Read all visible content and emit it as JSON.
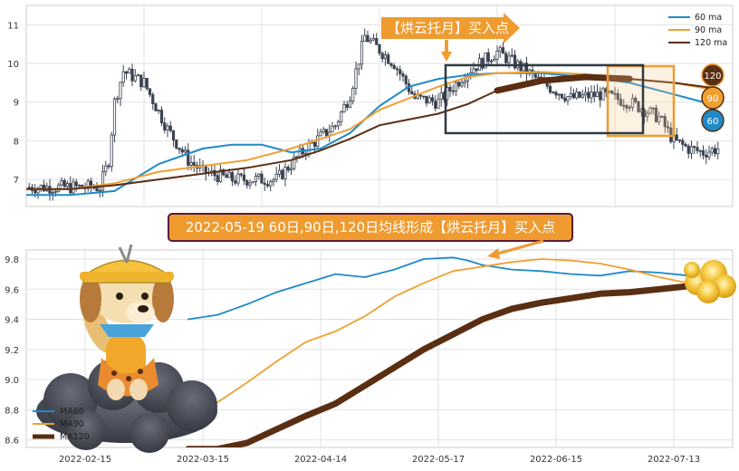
{
  "chart_data": [
    {
      "type": "candlestick",
      "panel": "top",
      "ylim": [
        6.3,
        11.5
      ],
      "yticks": [
        "7",
        "8",
        "9",
        "10",
        "11"
      ],
      "legend": {
        "position": "top-right",
        "entries": [
          "60 ma",
          "90 ma",
          "120 ma"
        ]
      },
      "series": [
        {
          "name": "60 ma",
          "color": "#1f8ac8",
          "x": [
            0,
            15,
            30,
            45,
            60,
            70,
            80,
            90,
            100,
            110,
            120,
            130,
            140,
            150,
            160,
            175,
            190,
            205,
            220,
            235
          ],
          "y": [
            6.6,
            6.6,
            6.7,
            7.4,
            7.8,
            7.9,
            7.9,
            7.7,
            7.8,
            8.2,
            8.9,
            9.4,
            9.6,
            9.7,
            9.75,
            9.75,
            9.65,
            9.5,
            9.2,
            8.9
          ]
        },
        {
          "name": "90 ma",
          "color": "#f0a030",
          "x": [
            0,
            15,
            30,
            45,
            60,
            75,
            90,
            100,
            110,
            120,
            130,
            140,
            150,
            160,
            175,
            190,
            205,
            220,
            235
          ],
          "y": [
            6.75,
            6.75,
            6.9,
            7.2,
            7.35,
            7.5,
            7.8,
            8.05,
            8.3,
            8.8,
            9.1,
            9.4,
            9.65,
            9.75,
            9.78,
            9.72,
            9.6,
            9.5,
            9.3
          ]
        },
        {
          "name": "120 ma",
          "color": "#5a2e12",
          "x": [
            0,
            15,
            30,
            45,
            60,
            75,
            90,
            100,
            110,
            120,
            130,
            140,
            150,
            160,
            175,
            190,
            205,
            220,
            235
          ],
          "y": [
            6.75,
            6.75,
            6.85,
            7.0,
            7.15,
            7.3,
            7.5,
            7.75,
            8.05,
            8.4,
            8.55,
            8.7,
            8.95,
            9.3,
            9.55,
            9.65,
            9.6,
            9.5,
            9.35
          ]
        }
      ],
      "annotations": [
        {
          "type": "banner",
          "text": "【烘云托月】买入点"
        },
        {
          "type": "box",
          "label": "60/90/120 MA box"
        },
        {
          "type": "box",
          "label": "orange box"
        }
      ],
      "badges": [
        "120",
        "90",
        "60"
      ]
    },
    {
      "type": "line",
      "panel": "bottom",
      "ylim": [
        8.55,
        9.86
      ],
      "yticks": [
        "8.6",
        "8.8",
        "9.0",
        "9.2",
        "9.4",
        "9.6",
        "9.8"
      ],
      "xticks": [
        "2022-02-15",
        "2022-03-15",
        "2022-04-14",
        "2022-05-17",
        "2022-06-15",
        "2022-07-13"
      ],
      "legend": {
        "position": "bottom-left",
        "entries": [
          "MA60",
          "MA90",
          "MA120"
        ]
      },
      "series": [
        {
          "name": "MA60",
          "color": "#1f8ac8",
          "x": [
            55,
            65,
            75,
            85,
            95,
            105,
            115,
            125,
            135,
            145,
            150,
            155,
            165,
            175,
            185,
            195,
            205,
            215,
            225,
            230
          ],
          "y": [
            9.4,
            9.43,
            9.5,
            9.58,
            9.64,
            9.7,
            9.68,
            9.73,
            9.8,
            9.81,
            9.79,
            9.76,
            9.73,
            9.72,
            9.7,
            9.69,
            9.72,
            9.71,
            9.69,
            9.65
          ]
        },
        {
          "name": "MA90",
          "color": "#f0a030",
          "x": [
            55,
            65,
            75,
            85,
            95,
            105,
            115,
            125,
            135,
            145,
            155,
            165,
            175,
            185,
            195,
            205,
            215,
            225,
            232
          ],
          "y": [
            8.75,
            8.85,
            8.98,
            9.12,
            9.25,
            9.32,
            9.42,
            9.55,
            9.64,
            9.72,
            9.75,
            9.78,
            9.8,
            9.79,
            9.77,
            9.73,
            9.68,
            9.64,
            9.62
          ]
        },
        {
          "name": "MA120",
          "color": "#5a2e12",
          "x": [
            55,
            60,
            65,
            75,
            85,
            95,
            105,
            115,
            125,
            135,
            145,
            155,
            165,
            175,
            185,
            195,
            205,
            215,
            225,
            235
          ],
          "y": [
            8.54,
            8.54,
            8.54,
            8.58,
            8.67,
            8.76,
            8.84,
            8.96,
            9.08,
            9.2,
            9.3,
            9.4,
            9.47,
            9.51,
            9.54,
            9.57,
            9.58,
            9.6,
            9.62,
            9.62
          ]
        }
      ],
      "annotations": [
        {
          "type": "banner",
          "text": "2022-05-19 60日,90日,120日均线形成【烘云托月】买入点"
        }
      ]
    }
  ],
  "colors": {
    "ma60": "#1f8ac8",
    "ma90": "#f0a030",
    "ma120": "#5a2e12",
    "banner": "#ef9b30",
    "banner_border": "#5a1a3a",
    "box": "#2f3a44"
  },
  "icons": [
    "dog-mascot-icon",
    "cloud-icon",
    "golden-cloud-icon",
    "arrow-right-icon",
    "arrow-down-icon"
  ]
}
